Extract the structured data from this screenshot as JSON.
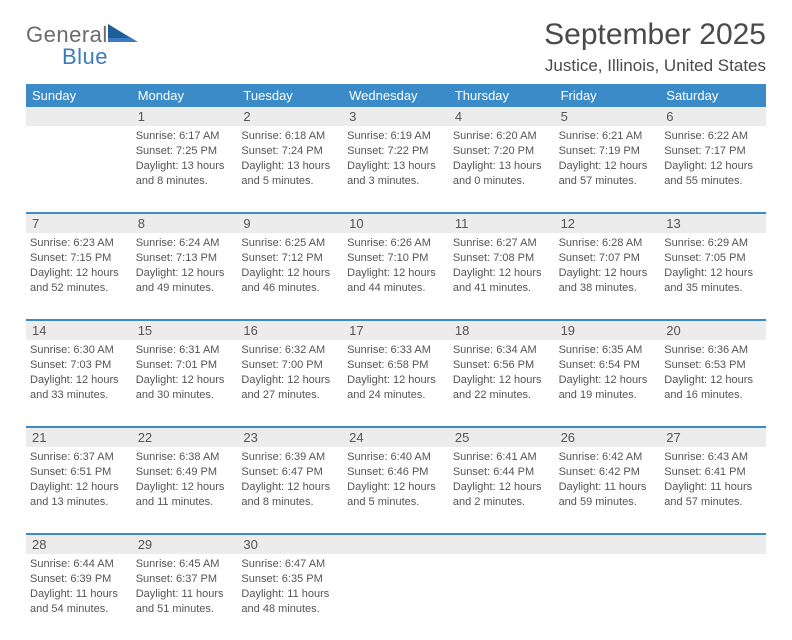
{
  "logo": {
    "top": "General",
    "bottom": "Blue"
  },
  "title": "September 2025",
  "location": "Justice, Illinois, United States",
  "colors": {
    "accent": "#3b8bc9",
    "logo_blue": "#3b7bbf",
    "text": "#555555",
    "daynum_bg": "#ececec"
  },
  "day_headers": [
    "Sunday",
    "Monday",
    "Tuesday",
    "Wednesday",
    "Thursday",
    "Friday",
    "Saturday"
  ],
  "weeks": [
    {
      "nums": [
        "",
        "1",
        "2",
        "3",
        "4",
        "5",
        "6"
      ],
      "cells": [
        {},
        {
          "sunrise": "Sunrise: 6:17 AM",
          "sunset": "Sunset: 7:25 PM",
          "dl1": "Daylight: 13 hours",
          "dl2": "and 8 minutes."
        },
        {
          "sunrise": "Sunrise: 6:18 AM",
          "sunset": "Sunset: 7:24 PM",
          "dl1": "Daylight: 13 hours",
          "dl2": "and 5 minutes."
        },
        {
          "sunrise": "Sunrise: 6:19 AM",
          "sunset": "Sunset: 7:22 PM",
          "dl1": "Daylight: 13 hours",
          "dl2": "and 3 minutes."
        },
        {
          "sunrise": "Sunrise: 6:20 AM",
          "sunset": "Sunset: 7:20 PM",
          "dl1": "Daylight: 13 hours",
          "dl2": "and 0 minutes."
        },
        {
          "sunrise": "Sunrise: 6:21 AM",
          "sunset": "Sunset: 7:19 PM",
          "dl1": "Daylight: 12 hours",
          "dl2": "and 57 minutes."
        },
        {
          "sunrise": "Sunrise: 6:22 AM",
          "sunset": "Sunset: 7:17 PM",
          "dl1": "Daylight: 12 hours",
          "dl2": "and 55 minutes."
        }
      ]
    },
    {
      "nums": [
        "7",
        "8",
        "9",
        "10",
        "11",
        "12",
        "13"
      ],
      "cells": [
        {
          "sunrise": "Sunrise: 6:23 AM",
          "sunset": "Sunset: 7:15 PM",
          "dl1": "Daylight: 12 hours",
          "dl2": "and 52 minutes."
        },
        {
          "sunrise": "Sunrise: 6:24 AM",
          "sunset": "Sunset: 7:13 PM",
          "dl1": "Daylight: 12 hours",
          "dl2": "and 49 minutes."
        },
        {
          "sunrise": "Sunrise: 6:25 AM",
          "sunset": "Sunset: 7:12 PM",
          "dl1": "Daylight: 12 hours",
          "dl2": "and 46 minutes."
        },
        {
          "sunrise": "Sunrise: 6:26 AM",
          "sunset": "Sunset: 7:10 PM",
          "dl1": "Daylight: 12 hours",
          "dl2": "and 44 minutes."
        },
        {
          "sunrise": "Sunrise: 6:27 AM",
          "sunset": "Sunset: 7:08 PM",
          "dl1": "Daylight: 12 hours",
          "dl2": "and 41 minutes."
        },
        {
          "sunrise": "Sunrise: 6:28 AM",
          "sunset": "Sunset: 7:07 PM",
          "dl1": "Daylight: 12 hours",
          "dl2": "and 38 minutes."
        },
        {
          "sunrise": "Sunrise: 6:29 AM",
          "sunset": "Sunset: 7:05 PM",
          "dl1": "Daylight: 12 hours",
          "dl2": "and 35 minutes."
        }
      ]
    },
    {
      "nums": [
        "14",
        "15",
        "16",
        "17",
        "18",
        "19",
        "20"
      ],
      "cells": [
        {
          "sunrise": "Sunrise: 6:30 AM",
          "sunset": "Sunset: 7:03 PM",
          "dl1": "Daylight: 12 hours",
          "dl2": "and 33 minutes."
        },
        {
          "sunrise": "Sunrise: 6:31 AM",
          "sunset": "Sunset: 7:01 PM",
          "dl1": "Daylight: 12 hours",
          "dl2": "and 30 minutes."
        },
        {
          "sunrise": "Sunrise: 6:32 AM",
          "sunset": "Sunset: 7:00 PM",
          "dl1": "Daylight: 12 hours",
          "dl2": "and 27 minutes."
        },
        {
          "sunrise": "Sunrise: 6:33 AM",
          "sunset": "Sunset: 6:58 PM",
          "dl1": "Daylight: 12 hours",
          "dl2": "and 24 minutes."
        },
        {
          "sunrise": "Sunrise: 6:34 AM",
          "sunset": "Sunset: 6:56 PM",
          "dl1": "Daylight: 12 hours",
          "dl2": "and 22 minutes."
        },
        {
          "sunrise": "Sunrise: 6:35 AM",
          "sunset": "Sunset: 6:54 PM",
          "dl1": "Daylight: 12 hours",
          "dl2": "and 19 minutes."
        },
        {
          "sunrise": "Sunrise: 6:36 AM",
          "sunset": "Sunset: 6:53 PM",
          "dl1": "Daylight: 12 hours",
          "dl2": "and 16 minutes."
        }
      ]
    },
    {
      "nums": [
        "21",
        "22",
        "23",
        "24",
        "25",
        "26",
        "27"
      ],
      "cells": [
        {
          "sunrise": "Sunrise: 6:37 AM",
          "sunset": "Sunset: 6:51 PM",
          "dl1": "Daylight: 12 hours",
          "dl2": "and 13 minutes."
        },
        {
          "sunrise": "Sunrise: 6:38 AM",
          "sunset": "Sunset: 6:49 PM",
          "dl1": "Daylight: 12 hours",
          "dl2": "and 11 minutes."
        },
        {
          "sunrise": "Sunrise: 6:39 AM",
          "sunset": "Sunset: 6:47 PM",
          "dl1": "Daylight: 12 hours",
          "dl2": "and 8 minutes."
        },
        {
          "sunrise": "Sunrise: 6:40 AM",
          "sunset": "Sunset: 6:46 PM",
          "dl1": "Daylight: 12 hours",
          "dl2": "and 5 minutes."
        },
        {
          "sunrise": "Sunrise: 6:41 AM",
          "sunset": "Sunset: 6:44 PM",
          "dl1": "Daylight: 12 hours",
          "dl2": "and 2 minutes."
        },
        {
          "sunrise": "Sunrise: 6:42 AM",
          "sunset": "Sunset: 6:42 PM",
          "dl1": "Daylight: 11 hours",
          "dl2": "and 59 minutes."
        },
        {
          "sunrise": "Sunrise: 6:43 AM",
          "sunset": "Sunset: 6:41 PM",
          "dl1": "Daylight: 11 hours",
          "dl2": "and 57 minutes."
        }
      ]
    },
    {
      "nums": [
        "28",
        "29",
        "30",
        "",
        "",
        "",
        ""
      ],
      "cells": [
        {
          "sunrise": "Sunrise: 6:44 AM",
          "sunset": "Sunset: 6:39 PM",
          "dl1": "Daylight: 11 hours",
          "dl2": "and 54 minutes."
        },
        {
          "sunrise": "Sunrise: 6:45 AM",
          "sunset": "Sunset: 6:37 PM",
          "dl1": "Daylight: 11 hours",
          "dl2": "and 51 minutes."
        },
        {
          "sunrise": "Sunrise: 6:47 AM",
          "sunset": "Sunset: 6:35 PM",
          "dl1": "Daylight: 11 hours",
          "dl2": "and 48 minutes."
        },
        {},
        {},
        {},
        {}
      ]
    }
  ]
}
